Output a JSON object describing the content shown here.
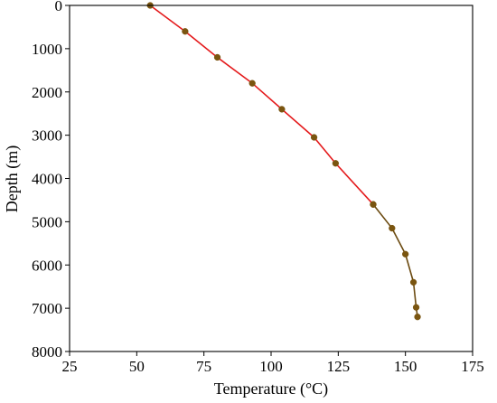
{
  "chart_data": {
    "type": "line",
    "title": "",
    "xlabel": "Temperature (°C)",
    "ylabel": "Depth (m)",
    "xlim": [
      25,
      175
    ],
    "ylim": [
      8000,
      0
    ],
    "y_inverted": true,
    "grid": false,
    "legend": "none",
    "x_ticks": [
      "25",
      "50",
      "75",
      "100",
      "125",
      "150",
      "175"
    ],
    "y_ticks": [
      "0",
      "1000",
      "2000",
      "3000",
      "4000",
      "5000",
      "6000",
      "7000",
      "8000"
    ],
    "series": [
      {
        "color": "#e41a1c",
        "marker_color": "#7a5510",
        "points": [
          {
            "x": 55,
            "y": 0
          },
          {
            "x": 68,
            "y": 600
          },
          {
            "x": 80,
            "y": 1200
          },
          {
            "x": 93,
            "y": 1800
          },
          {
            "x": 104,
            "y": 2400
          },
          {
            "x": 116,
            "y": 3050
          },
          {
            "x": 124,
            "y": 3650
          },
          {
            "x": 138,
            "y": 4600
          }
        ]
      },
      {
        "color": "#6b4a10",
        "marker_color": "#7a5510",
        "points": [
          {
            "x": 138,
            "y": 4600
          },
          {
            "x": 145,
            "y": 5150
          },
          {
            "x": 150,
            "y": 5750
          },
          {
            "x": 153,
            "y": 6400
          },
          {
            "x": 154,
            "y": 6980
          },
          {
            "x": 154.5,
            "y": 7200
          }
        ]
      }
    ]
  }
}
